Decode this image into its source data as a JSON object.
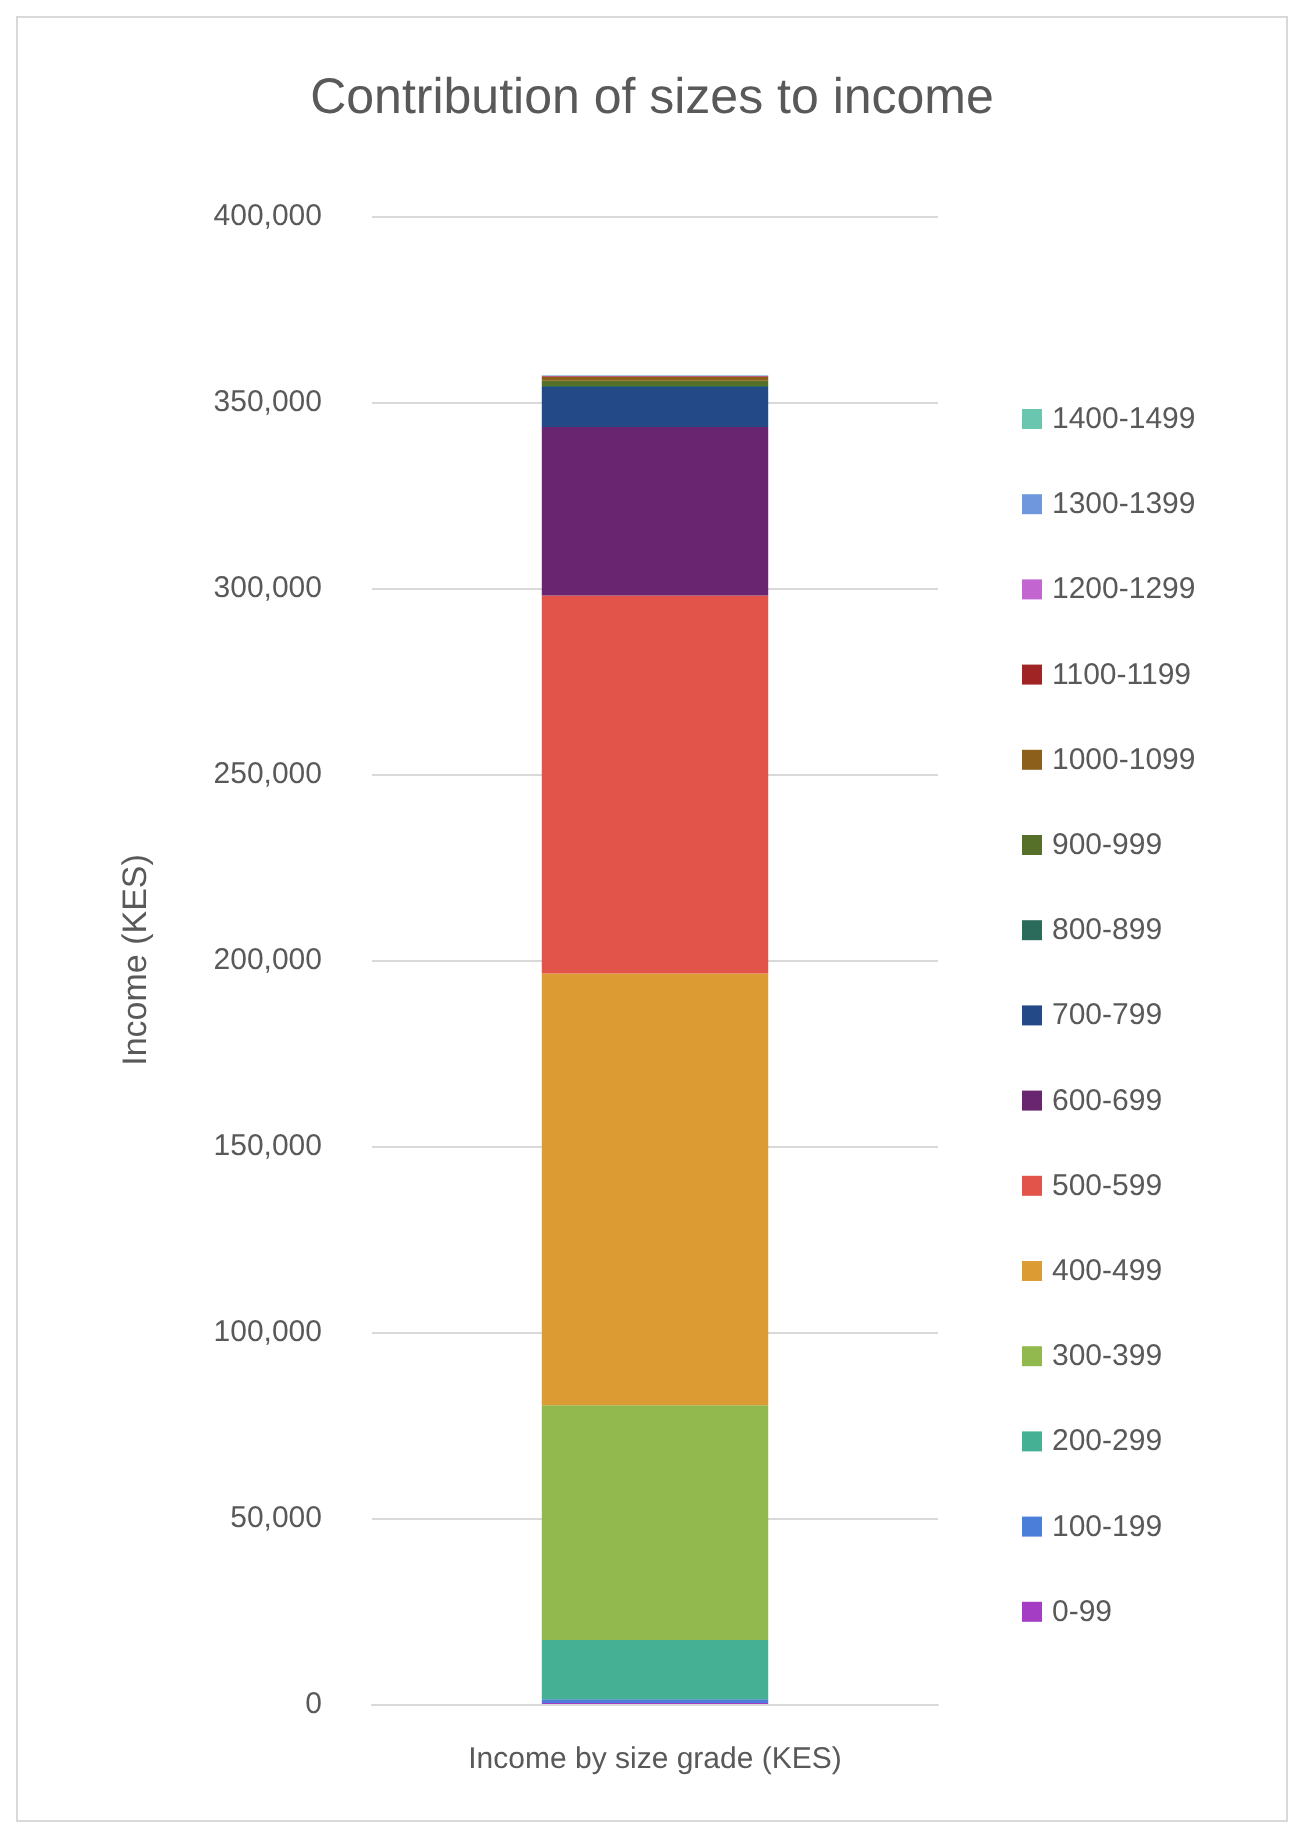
{
  "chart_data": {
    "type": "bar",
    "title": "Contribution of sizes to income",
    "ylabel": "Income (KES)",
    "categories": [
      "Income by size grade (KES)"
    ],
    "stacked": true,
    "series": [
      {
        "name": "0-99",
        "color": "#a43cc4",
        "values": [
          300
        ]
      },
      {
        "name": "100-199",
        "color": "#4a7ed8",
        "values": [
          1000
        ]
      },
      {
        "name": "200-299",
        "color": "#46b094",
        "values": [
          15900
        ]
      },
      {
        "name": "300-399",
        "color": "#92b94e",
        "values": [
          63100
        ]
      },
      {
        "name": "400-499",
        "color": "#dc9c33",
        "values": [
          116100
        ]
      },
      {
        "name": "500-599",
        "color": "#e2544a",
        "values": [
          101600
        ]
      },
      {
        "name": "600-699",
        "color": "#692570",
        "values": [
          45300
        ]
      },
      {
        "name": "700-799",
        "color": "#234a86",
        "values": [
          10700
        ]
      },
      {
        "name": "800-899",
        "color": "#2a6b5c",
        "values": [
          300
        ]
      },
      {
        "name": "900-999",
        "color": "#567029",
        "values": [
          1400
        ]
      },
      {
        "name": "1000-1099",
        "color": "#8c5f1b",
        "values": [
          1000
        ]
      },
      {
        "name": "1100-1199",
        "color": "#a02424",
        "values": [
          200
        ]
      },
      {
        "name": "1200-1299",
        "color": "#c265d1",
        "values": [
          100
        ]
      },
      {
        "name": "1300-1399",
        "color": "#6f97de",
        "values": [
          100
        ]
      },
      {
        "name": "1400-1499",
        "color": "#6bc6b0",
        "values": [
          100
        ]
      }
    ],
    "ylim": [
      0,
      400000
    ],
    "yticks": [
      {
        "value": 0,
        "label": "0"
      },
      {
        "value": 50000,
        "label": "50,000"
      },
      {
        "value": 100000,
        "label": "100,000"
      },
      {
        "value": 150000,
        "label": "150,000"
      },
      {
        "value": 200000,
        "label": "200,000"
      },
      {
        "value": 250000,
        "label": "250,000"
      },
      {
        "value": 300000,
        "label": "300,000"
      },
      {
        "value": 350000,
        "label": "350,000"
      },
      {
        "value": 400000,
        "label": "400,000"
      }
    ],
    "grid": "y",
    "legend": "right"
  }
}
